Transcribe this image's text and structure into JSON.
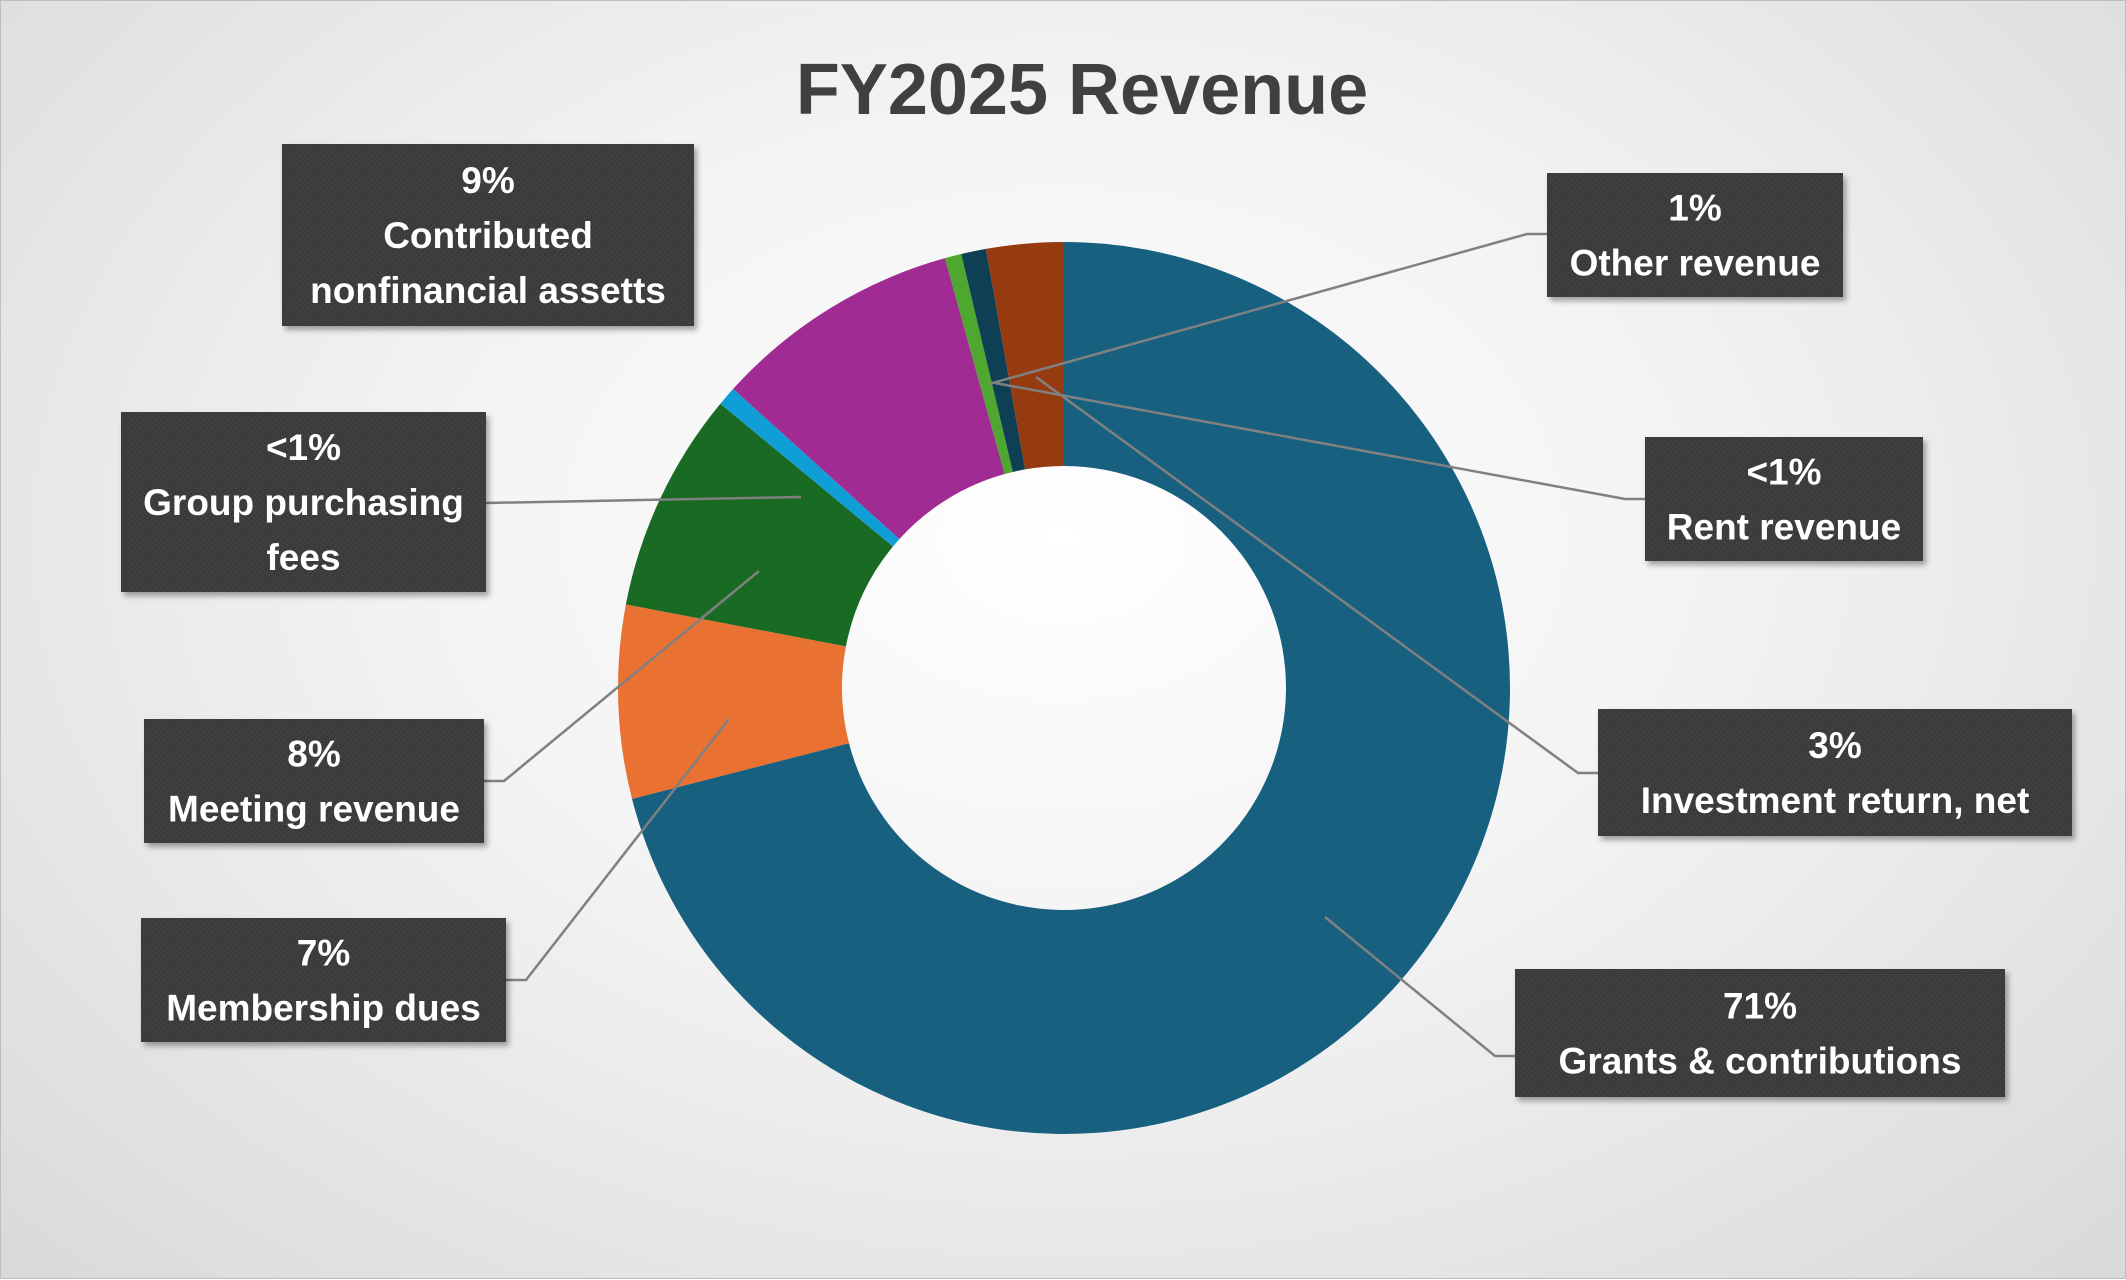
{
  "chart_data": {
    "type": "donut",
    "title": "FY2025 Revenue",
    "slices": [
      {
        "name": "Grants & contributions",
        "value": 71,
        "label": "71%",
        "color": "#17607f"
      },
      {
        "name": "Membership dues",
        "value": 7,
        "label": "7%",
        "color": "#e97132"
      },
      {
        "name": "Meeting revenue",
        "value": 8,
        "label": "8%",
        "color": "#196b24"
      },
      {
        "name": "Group purchasing fees",
        "value": 0.7,
        "label": "<1%",
        "color": "#0f9ed5"
      },
      {
        "name": "Contributed nonfinancial assetts",
        "value": 9,
        "label": "9%",
        "color": "#a02b93"
      },
      {
        "name": "Rent revenue",
        "value": 0.6,
        "label": "<1%",
        "color": "#4ea72e"
      },
      {
        "name": "Other revenue",
        "value": 0.9,
        "label": "1%",
        "color": "#0e3f55"
      },
      {
        "name": "Investment return, net",
        "value": 2.8,
        "label": "3%",
        "color": "#953b0f"
      }
    ],
    "legend": "none",
    "data_labels": "callouts with percent and category name"
  }
}
